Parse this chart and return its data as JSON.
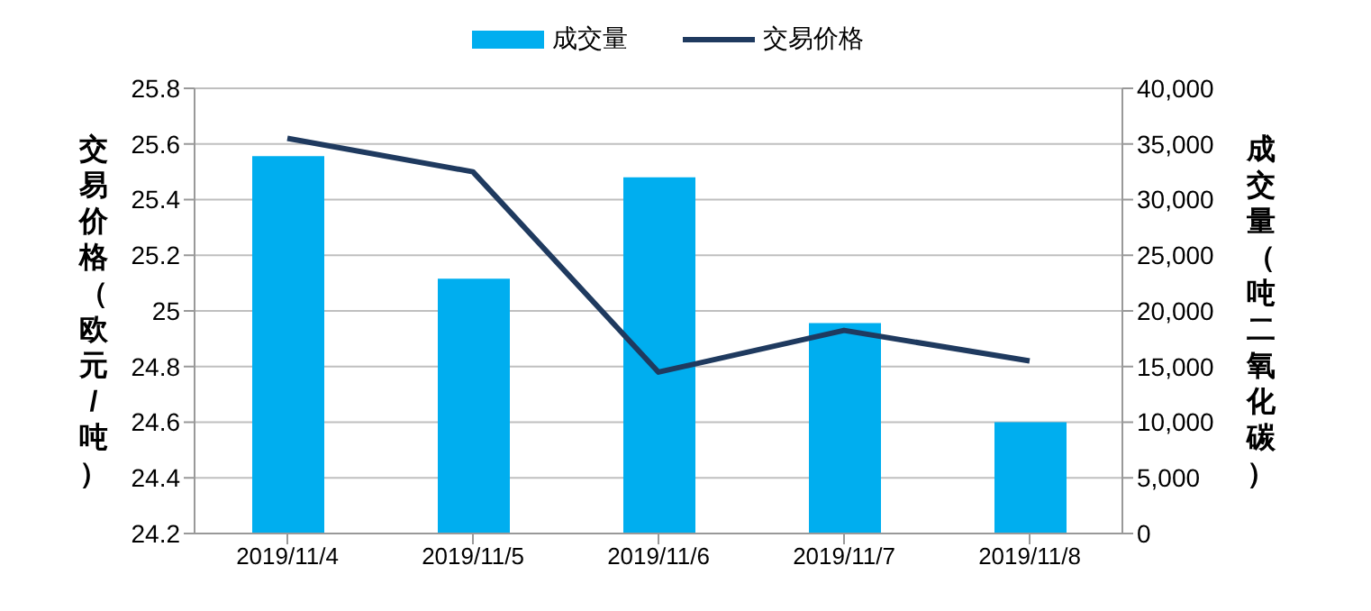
{
  "chart_data": {
    "type": "bar",
    "categories": [
      "2019/11/4",
      "2019/11/5",
      "2019/11/6",
      "2019/11/7",
      "2019/11/8"
    ],
    "series": [
      {
        "name": "成交量",
        "axis": "y2",
        "color": "#00aeef",
        "values": [
          33900,
          22900,
          32000,
          18900,
          10000
        ]
      },
      {
        "name": "交易价格",
        "type": "line",
        "color": "#1f3a5f",
        "values": [
          25.62,
          25.5,
          24.78,
          24.93,
          24.82
        ]
      }
    ],
    "ylabel": "交易价格（欧元/吨）",
    "y2label": "成交量（吨二氧化碳）",
    "ylim": [
      24.2,
      25.8
    ],
    "yticks": [
      24.2,
      24.4,
      24.6,
      24.8,
      25,
      25.2,
      25.4,
      25.6,
      25.8
    ],
    "y2lim": [
      0,
      40000
    ],
    "y2ticks": [
      {
        "value": 0,
        "label": "0"
      },
      {
        "value": 5000,
        "label": "5,000"
      },
      {
        "value": 10000,
        "label": "10,000"
      },
      {
        "value": 15000,
        "label": "15,000"
      },
      {
        "value": 20000,
        "label": "20,000"
      },
      {
        "value": 25000,
        "label": "25,000"
      },
      {
        "value": 30000,
        "label": "30,000"
      },
      {
        "value": 35000,
        "label": "35,000"
      },
      {
        "value": 40000,
        "label": "40,000"
      }
    ],
    "grid": "y",
    "legend": "top",
    "marker": "none",
    "line_style": "solid"
  }
}
